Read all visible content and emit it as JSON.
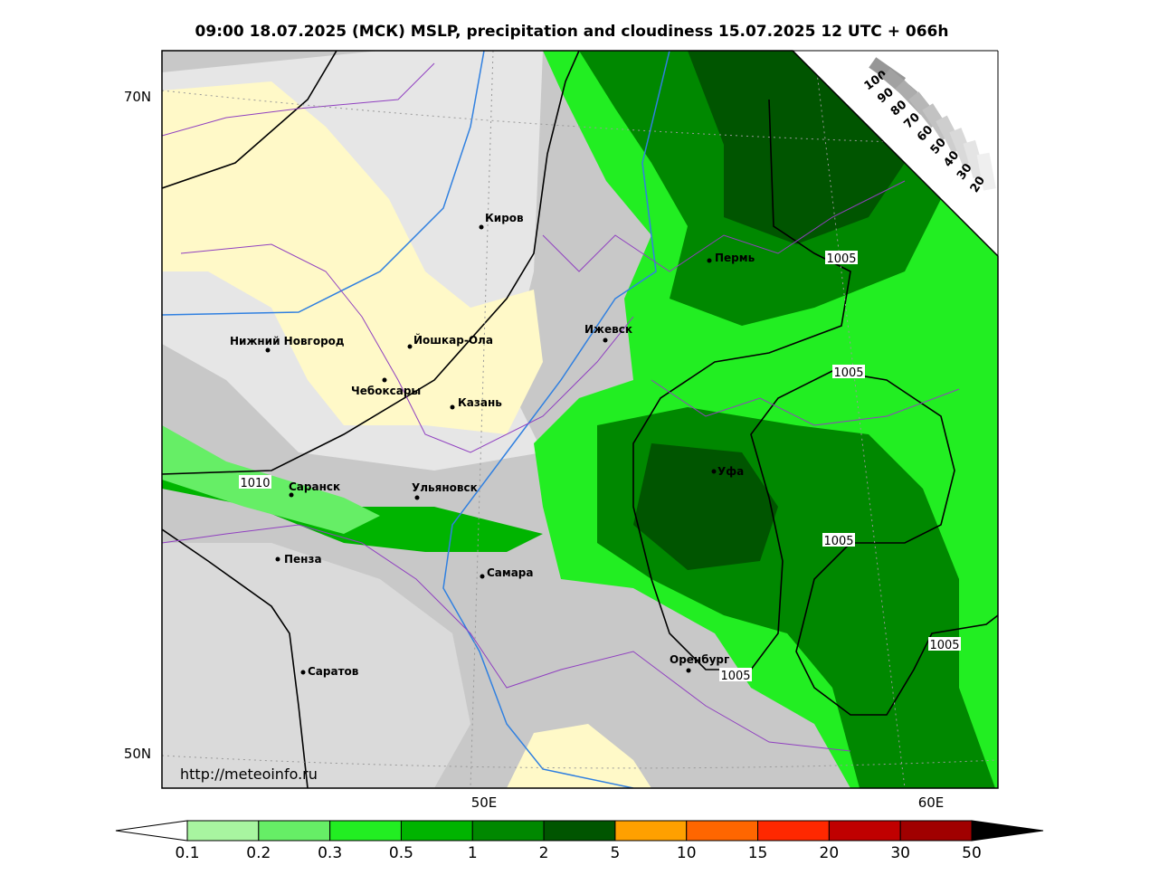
{
  "title": "09:00 18.07.2025 (МСК) MSLP, precipitation and cloudiness 15.07.2025 12 UTC + 066h",
  "url": "http://meteoinfo.ru",
  "lat_labels": [
    "70N",
    "50N"
  ],
  "lon_labels": [
    "50E",
    "60E"
  ],
  "cities": [
    "Киров",
    "Пермь",
    "Нижний Новгород",
    "Йошкар-Ола",
    "Ижевск",
    "Чебоксары",
    "Казань",
    "Саранск",
    "Ульяновск",
    "Уфа",
    "Пенза",
    "Самара",
    "Оренбург",
    "Саратов"
  ],
  "isobar_labels": [
    1010,
    1005,
    1005,
    1005,
    1005,
    1005
  ],
  "precip_legend": {
    "labels": [
      0.1,
      0.2,
      0.3,
      0.5,
      1,
      2,
      5,
      10,
      15,
      20,
      30,
      50
    ],
    "colors": [
      "#a8f5a0",
      "#66ee66",
      "#22ee22",
      "#00b400",
      "#008800",
      "#005500",
      "#ffa000",
      "#ff6600",
      "#ff2800",
      "#c00000",
      "#a00000"
    ],
    "under_color": "#ffffff",
    "over_color": "#000000"
  },
  "cloud_legend": {
    "labels": [
      100,
      90,
      80,
      70,
      60,
      50,
      40,
      30,
      20
    ]
  }
}
